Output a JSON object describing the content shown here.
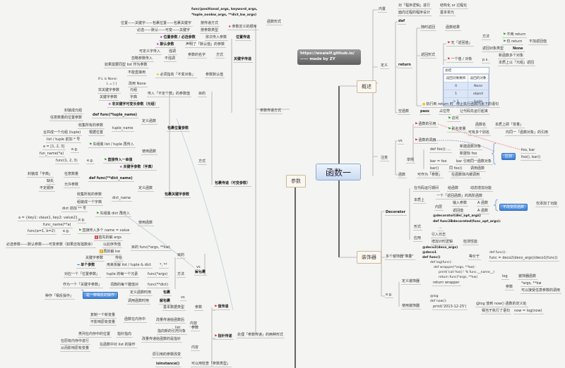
{
  "center_topic": "函数一",
  "url_box": {
    "line1": "https://woaielf.github.io/",
    "line2": "----- made by ZY"
  },
  "main_topics": {
    "overview": "概述",
    "params": "参数",
    "decorator": "装饰器"
  },
  "overview": [
    "内置",
    "对「程序逻辑」进行",
    "结构化 or 过程化",
    "面向过程的程序设计",
    "基本单元",
    "def",
    "定义",
    "return",
    "随时返回",
    "函数结果",
    "返回形式",
    "无「返回值」",
    "方法",
    "不用 return",
    "仅 return",
    "不加返回值",
    "返回对象类型",
    "None",
    "一个值 / 对象",
    "p.s.",
    "新函数多个对象",
    "本质上以「元组」返回",
    "执行到 return 时",
    "停止执行函数内余下的语句",
    "空函数",
    "pass",
    "占位符",
    "让代码先运行起来"
  ],
  "summary_table": {
    "title": "总结",
    "headers": [
      "返回对象数目",
      "返回的对象"
    ],
    "rows": [
      [
        "0",
        "None"
      ],
      [
        "1",
        "object"
      ],
      [
        "> 1",
        "tuple"
      ]
    ]
  },
  "notes": [
    "注意",
    "vs",
    "函数的引用",
    "访问",
    "别名变量",
    "函数名",
    "本质上即「变量」",
    "可有多个别名",
    "均同一「函数对象」的引用",
    "函数的调用",
    "举例",
    "def foo(): ...",
    "新建函数对象",
    "新建标 foo",
    "bar = foo",
    "bar 引用同一函数对象",
    "bar()",
    "同 foo()",
    "调用函数",
    "区别",
    "foo, bar",
    "foo(), bar()",
    "函数",
    "可作为「参数」",
    "在函数体内被调用"
  ],
  "decorator": [
    "Decorator",
    "在代码运行期间",
    "给函数",
    "动态增加功能",
    "本质上",
    "一个「返回函数」的高阶函数",
    "内层",
    "输入参数",
    "A 函数",
    "返回值",
    "A 函数",
    "不改变原函数",
    "仅添加了功能",
    "@decorator(dec_opt_args)",
    "def func2Bdecorated(func_opt_args):",
    "...",
    "形式",
    "应用",
    "引入日志",
    "增加计时逻辑",
    "检测性能",
    "多个装饰器\"堆叠\"",
    "@deco2(deco_args)",
    "@deco1",
    "def func()",
    "等价于",
    "def func():",
    "func = deco2(deco_args)(deco1(func))",
    "e.g.",
    "定义装饰器",
    "def log(func):",
    "def wrapper(*args, **kw):",
    "print('call %s():' % func.__name__)",
    "return func(*args, **kw)",
    "return wrapper",
    "log",
    "装饰器函数",
    "参数",
    "*args, **kw",
    "可以接受任意参数的调用",
    "使用装饰器",
    "@log",
    "def now():",
    "print('2013-12-25')",
    "@log 放到 now() 函数的定义处",
    "相当于执行了语句",
    "now = log(now)"
  ],
  "params": [
    "函数形式",
    "func(positional_args, keyword_args,",
    "*tuple_nonkw_args, **dict_kw_args)",
    "参数定义的顺序",
    "位置——关键字——包裹位置——包裹关键字",
    "按传递方式",
    "必选——默认——可变——关键字",
    "按参数类型",
    "位置参数 / 必选参数",
    "依次传入参数",
    "位置传递",
    "默认参数",
    "声明了「默认值」的参数",
    "可定义字传入",
    "强调",
    "参数的名字",
    "方式",
    "忽略参数传入",
    "不强调",
    "关键字传递",
    "如果需要同型 list 作为参数",
    "不能直接用",
    "必须指向「不变对象」",
    "参数默认值",
    "If L is None:",
    "L = [ ]",
    "改用 None",
    "非关键字参数",
    "元组",
    "关键字参数",
    "字典",
    "传入「不定个数」的参数值",
    "目的",
    "非关键字可变长参数（元组）",
    "参数传递方式",
    "封装成元组",
    "任意数量的位置参数",
    "def func(*tuple_name)",
    "定义函数",
    "包裹位置参数",
    "收集所有的参数",
    "tuple_name",
    "合并成一个元组 (tuple)",
    "根据位置",
    "list / tuple 前加 * 号",
    "先组装 list / tuple 再传入",
    "a = [1, 2, 3]",
    "e.g.",
    "fun_name(*a)",
    "使用函数",
    "func(1, 2, 3)",
    "e.g.",
    "直接传入一串值",
    "方式",
    "关键字参数（字典）",
    "封装成「字典」",
    "任意数量",
    "def func(**dict_name)",
    "缺失",
    "允许参数",
    "不定顺序",
    "定义函数",
    "包裹关键字参数",
    "包裹传递（可变参数）",
    "收集所有的参数",
    "dict_name",
    "组装成一个字典",
    "dict 前加 ** 号",
    "先组装 dict 再传入",
    "a = {key1: vlaue1, key2: value2}",
    "e.g.",
    "func_name(**a)",
    "使用函数",
    "func(a=1, b=2)",
    "e.g.",
    "直接传入多个 name = value",
    "首先拆解 args",
    "必选参数——默认参数——可变参数（如果还有指数余）",
    "以此序传值",
    "目的 func(*args, **kw)",
    "再拆解 kw",
    "关键字参数",
    "传给",
    "单个参数",
    "用来拆解 list / tuple & dict",
    "*, **",
    "目的",
    "对应一个「位置参数」",
    "tuple 的每一个元素",
    "func(*args)",
    "方法",
    "作为一个「关键字参数」",
    "词典的每个键值对",
    "func(**dict)",
    "解包裹",
    "vs",
    "种作「相反操作」",
    "是一种相反的操作",
    "定义函数时用",
    "包裹",
    "调用函数时用",
    "解包裹",
    "vs",
    "基本数据类型",
    "参数",
    "复制一个新变量",
    "不影响原有变量",
    "函数在内存中",
    "改量传递给函数后",
    "内容",
    "指向新的引用对象",
    "值传递",
    "list",
    "参数",
    "类列在内存中的位置",
    "指针指向",
    "改量传递给函数的是指针",
    "在原有内存中进行",
    "从而影响原有变量",
    "在函数中对 list 的操作",
    "内容",
    "指针传递",
    "原引用的参数改变",
    "isinstance()",
    "可以用检查「参数类型」",
    "处理「参数传递」的两种形式"
  ],
  "colors": {
    "flag_red": "#d33333",
    "flag_green": "#22aa22",
    "star_purple": "#aa33cc",
    "highlight_blue": "#3b7fd6",
    "center_fill": "#c9daf2"
  }
}
